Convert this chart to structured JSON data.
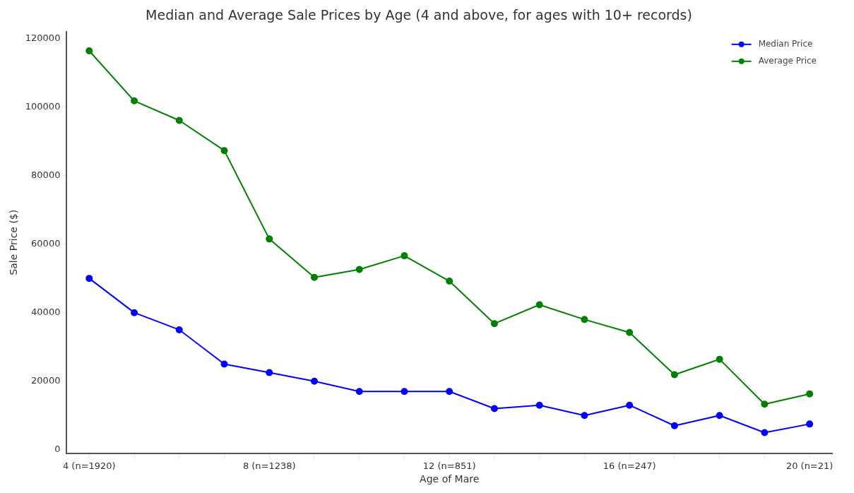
{
  "chart_data": {
    "type": "line",
    "title": "Median and Average Sale Prices by Age (4 and above, for ages with 10+ records)",
    "xlabel": "Age of Mare",
    "ylabel": "Sale Price ($)",
    "categories": [
      "4\n(n=1920)",
      null,
      null,
      null,
      "8\n(n=1238)",
      null,
      null,
      null,
      "12\n(n=851)",
      null,
      null,
      null,
      "16\n(n=247)",
      null,
      null,
      null,
      "20\n(n=21)"
    ],
    "series": [
      {
        "name": "Median Price",
        "color": "#0000ff",
        "values": [
          50000,
          40000,
          35000,
          25000,
          22500,
          20000,
          17000,
          17000,
          17000,
          12000,
          13000,
          10000,
          13000,
          7000,
          10000,
          5000,
          7500
        ]
      },
      {
        "name": "Average Price",
        "color": "#008000",
        "values": [
          116400,
          101800,
          96100,
          87300,
          61500,
          50300,
          52600,
          56600,
          49200,
          36800,
          42300,
          38000,
          34200,
          21900,
          26400,
          13300,
          16300
        ]
      }
    ],
    "ylim": [
      -1000,
      122000
    ],
    "yticks": [
      0,
      20000,
      40000,
      60000,
      80000,
      100000,
      120000
    ],
    "grid": false,
    "legend": "top right",
    "marker": "circle",
    "line_style": "solid"
  }
}
